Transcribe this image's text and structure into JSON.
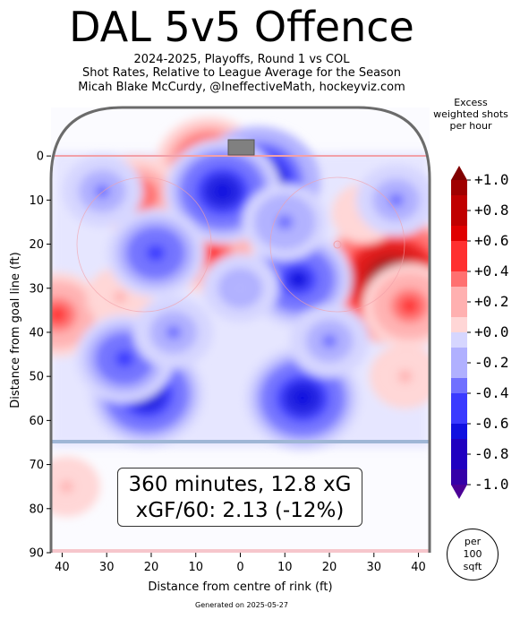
{
  "title": "DAL 5v5 Offence",
  "subtitle_lines": [
    "2024-2025, Playoffs, Round 1 vs COL",
    "Shot Rates, Relative to League Average for the Season",
    "Micah Blake McCurdy, @IneffectiveMath, hockeyviz.com"
  ],
  "stats": {
    "line1": "360 minutes, 12.8 xG",
    "line2": "xGF/60: 2.13 (-12%)"
  },
  "footer": "Generated on 2025-05-27",
  "colorbar": {
    "title_lines": [
      "Excess",
      "weighted shots",
      "per hour"
    ],
    "tick_labels": [
      "+1.0",
      "+0.8",
      "+0.6",
      "+0.4",
      "+0.2",
      "+0.0",
      "-0.2",
      "-0.4",
      "-0.6",
      "-0.8",
      "-1.0"
    ],
    "tick_values": [
      1.0,
      0.8,
      0.6,
      0.4,
      0.2,
      0.0,
      -0.2,
      -0.4,
      -0.6,
      -0.8,
      -1.0
    ],
    "low_color": "#4b0096",
    "mid_color": "#ffffff",
    "high_color": "#800000"
  },
  "per_badge": [
    "per",
    "100",
    "sqft"
  ],
  "chart_data": {
    "type": "heatmap",
    "xlabel": "Distance from centre of rink (ft)",
    "ylabel": "Distance from goal line (ft)",
    "xlim": [
      42.5,
      -42.5
    ],
    "ylim": [
      90,
      -11
    ],
    "x_ticks": [
      40,
      30,
      20,
      10,
      0,
      10,
      20,
      30,
      40
    ],
    "x_tick_values": [
      40,
      30,
      20,
      10,
      0,
      -10,
      -20,
      -30,
      -40
    ],
    "y_ticks": [
      0,
      10,
      20,
      30,
      40,
      50,
      60,
      70,
      80,
      90
    ],
    "hotspots": [
      {
        "x": -34,
        "y": 28,
        "value": 1.0
      },
      {
        "x": -38,
        "y": 34,
        "value": 0.45
      },
      {
        "x": 7,
        "y": 2,
        "value": 0.6
      },
      {
        "x": 23,
        "y": 9,
        "value": 0.4
      },
      {
        "x": 6,
        "y": 22,
        "value": 0.45
      },
      {
        "x": 41,
        "y": 36,
        "value": 0.45
      },
      {
        "x": 27,
        "y": 32,
        "value": 0.15
      },
      {
        "x": -28,
        "y": 13,
        "value": 0.15
      },
      {
        "x": -37,
        "y": 50,
        "value": 0.2
      },
      {
        "x": 39,
        "y": 75,
        "value": 0.15
      },
      {
        "x": -4,
        "y": 6,
        "value": -0.8
      },
      {
        "x": 4,
        "y": 8,
        "value": -0.7
      },
      {
        "x": -13,
        "y": 28,
        "value": -0.6
      },
      {
        "x": 19,
        "y": 22,
        "value": -0.5
      },
      {
        "x": 21,
        "y": 54,
        "value": -0.7
      },
      {
        "x": 26,
        "y": 46,
        "value": -0.5
      },
      {
        "x": -14,
        "y": 55,
        "value": -0.7
      },
      {
        "x": 15,
        "y": 40,
        "value": -0.3
      },
      {
        "x": 31,
        "y": 8,
        "value": -0.3
      },
      {
        "x": -35,
        "y": 10,
        "value": -0.3
      },
      {
        "x": -10,
        "y": 15,
        "value": -0.35
      },
      {
        "x": 0,
        "y": 30,
        "value": -0.25
      },
      {
        "x": -20,
        "y": 42,
        "value": -0.3
      }
    ]
  }
}
